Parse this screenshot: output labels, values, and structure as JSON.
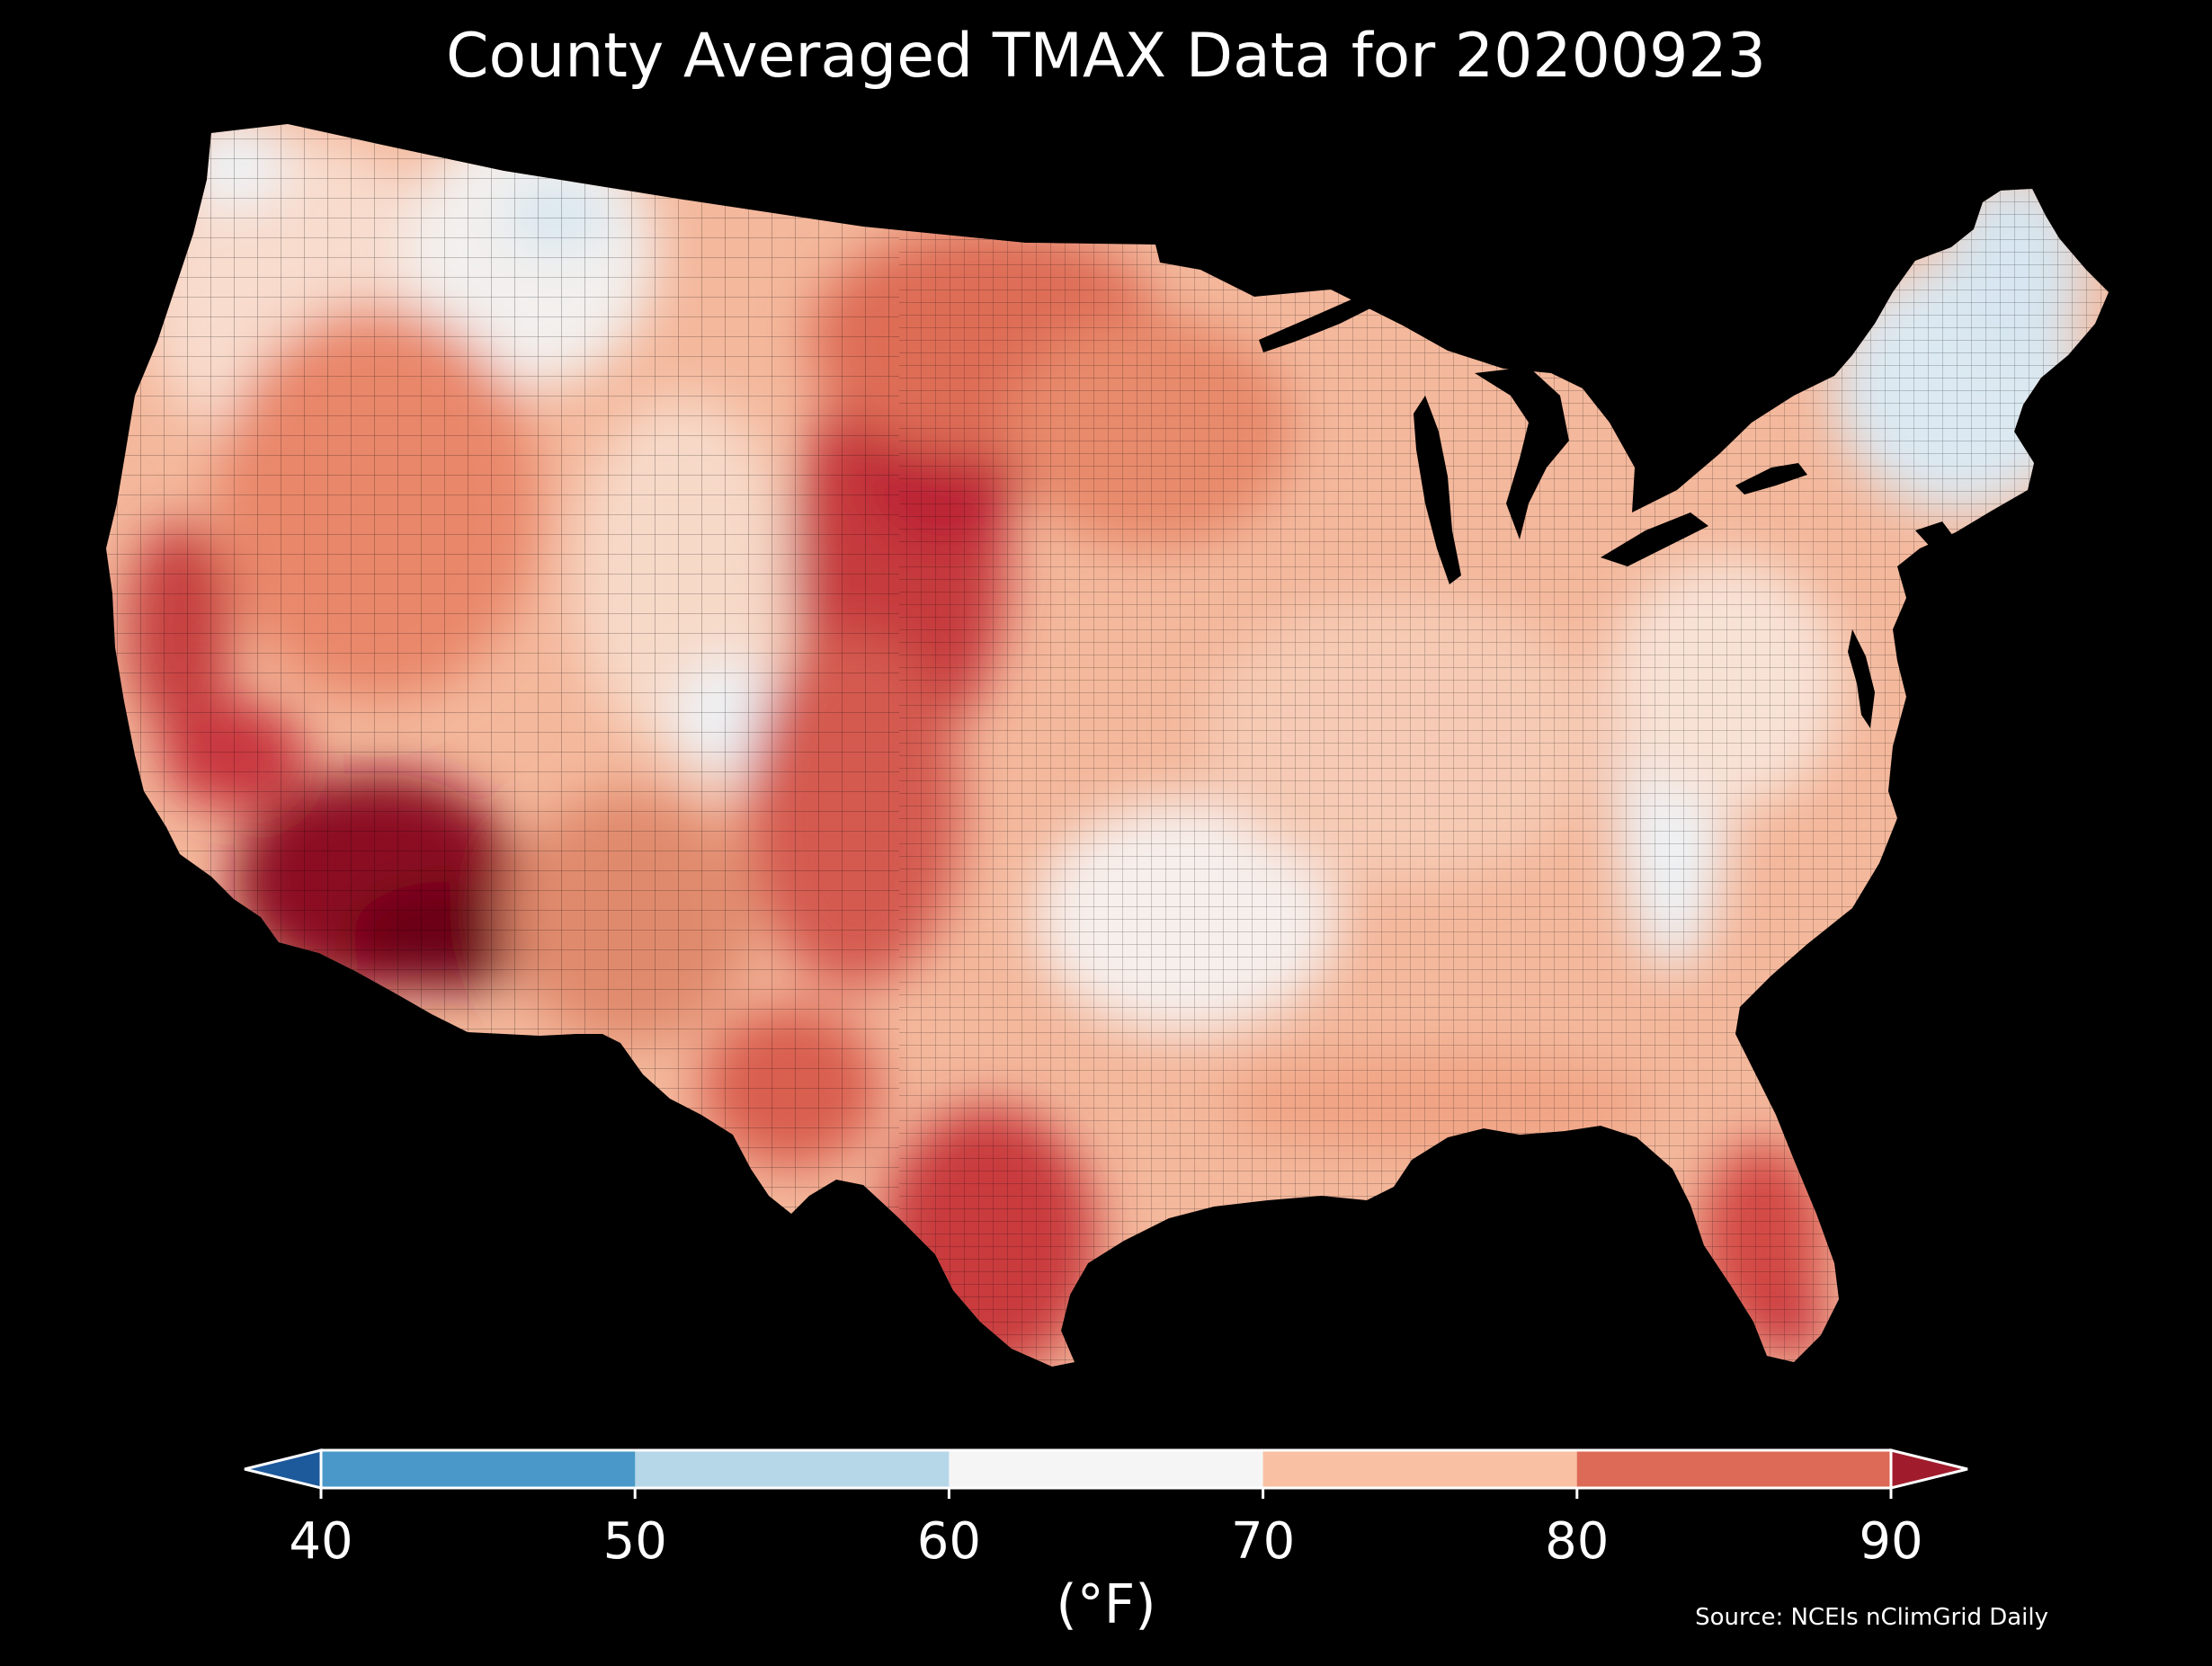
{
  "map": {
    "title": "County Averaged TMAX Data for 20200923",
    "region": "Contiguous United States (county-level choropleth)",
    "variable": "TMAX",
    "date": "20200923",
    "source": "Source: NCEIs nClimGrid Daily",
    "background_color": "#000000",
    "county_border_color": "#000000"
  },
  "legend": {
    "type": "colorbar",
    "orientation": "horizontal",
    "placement": "bottom-center",
    "unit_label": "(°F)",
    "extend": "both",
    "ticks": [
      "40",
      "50",
      "60",
      "70",
      "80",
      "90"
    ],
    "bins": [
      {
        "range": "<40",
        "color": "#1d5a9c"
      },
      {
        "range": "40-50",
        "color": "#4a98c9"
      },
      {
        "range": "50-60",
        "color": "#b6d7e8"
      },
      {
        "range": "60-70",
        "color": "#f5f5f5"
      },
      {
        "range": "70-80",
        "color": "#f9c0a3"
      },
      {
        "range": "80-90",
        "color": "#dc6a56"
      },
      {
        "range": ">90",
        "color": "#a01c2c"
      }
    ]
  },
  "regions": [
    {
      "name": "Desert Southwest (AZ / SE CA)",
      "approx_tmax": "> 90",
      "color": "#7a0018"
    },
    {
      "name": "Central & Southern Great Plains",
      "approx_tmax": "85-90",
      "color": "#c8363c"
    },
    {
      "name": "South Texas",
      "approx_tmax": "85-90",
      "color": "#c8363c"
    },
    {
      "name": "Florida Peninsula",
      "approx_tmax": "85-90",
      "color": "#d34a45"
    },
    {
      "name": "Upper Midwest & Dakotas",
      "approx_tmax": "80-85",
      "color": "#e07a60"
    },
    {
      "name": "Great Basin / Nevada",
      "approx_tmax": "75-85",
      "color": "#e9876a"
    },
    {
      "name": "Pacific Northwest interior",
      "approx_tmax": "70-75",
      "color": "#f7c8b0"
    },
    {
      "name": "Northern Rockies",
      "approx_tmax": "60-70",
      "color": "#f3f0ee"
    },
    {
      "name": "Southern Plains (OK / AR / MO)",
      "approx_tmax": "65-72",
      "color": "#fbeee6"
    },
    {
      "name": "Ohio Valley & Mid-Atlantic",
      "approx_tmax": "70-75",
      "color": "#f8dccd"
    },
    {
      "name": "Appalachians",
      "approx_tmax": "60-68",
      "color": "#eef3f6"
    },
    {
      "name": "New England",
      "approx_tmax": "55-65",
      "color": "#dbe9f2"
    },
    {
      "name": "Gulf Coast & Southeast",
      "approx_tmax": "75-82",
      "color": "#f1a485"
    }
  ]
}
